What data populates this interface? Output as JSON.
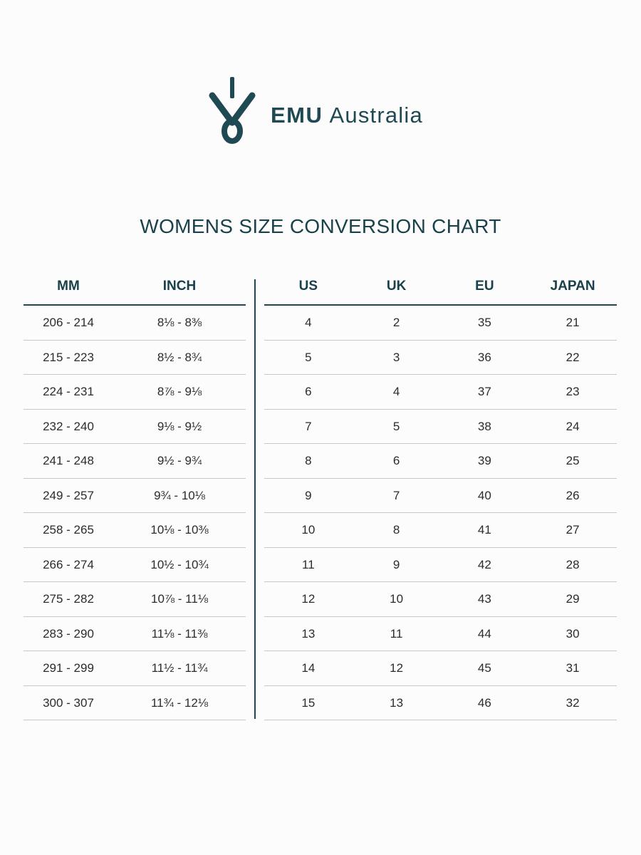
{
  "brand": {
    "name_bold": "EMU",
    "name_light": "Australia"
  },
  "title": "WOMENS SIZE CONVERSION CHART",
  "headers": {
    "mm": "MM",
    "inch": "INCH",
    "us": "US",
    "uk": "UK",
    "eu": "EU",
    "japan": "JAPAN"
  },
  "rows": [
    {
      "mm": "206  -  214",
      "inch": "8⅛  -  8⅜",
      "us": "4",
      "uk": "2",
      "eu": "35",
      "japan": "21"
    },
    {
      "mm": "215  -  223",
      "inch": "8½  -  8¾",
      "us": "5",
      "uk": "3",
      "eu": "36",
      "japan": "22"
    },
    {
      "mm": "224  -  231",
      "inch": "8⅞  -  9⅛",
      "us": "6",
      "uk": "4",
      "eu": "37",
      "japan": "23"
    },
    {
      "mm": "232  -  240",
      "inch": "9⅛  -  9½",
      "us": "7",
      "uk": "5",
      "eu": "38",
      "japan": "24"
    },
    {
      "mm": "241  -  248",
      "inch": "9½  -  9¾",
      "us": "8",
      "uk": "6",
      "eu": "39",
      "japan": "25"
    },
    {
      "mm": "249  -  257",
      "inch": "9¾  -  10⅛",
      "us": "9",
      "uk": "7",
      "eu": "40",
      "japan": "26"
    },
    {
      "mm": "258  -  265",
      "inch": "10⅛  -  10⅜",
      "us": "10",
      "uk": "8",
      "eu": "41",
      "japan": "27"
    },
    {
      "mm": "266  -  274",
      "inch": "10½  -  10¾",
      "us": "11",
      "uk": "9",
      "eu": "42",
      "japan": "28"
    },
    {
      "mm": "275  -  282",
      "inch": "10⅞  -  11⅛",
      "us": "12",
      "uk": "10",
      "eu": "43",
      "japan": "29"
    },
    {
      "mm": "283  -  290",
      "inch": "11⅛  -  11⅜",
      "us": "13",
      "uk": "11",
      "eu": "44",
      "japan": "30"
    },
    {
      "mm": "291  -  299",
      "inch": "11½  -  11¾",
      "us": "14",
      "uk": "12",
      "eu": "45",
      "japan": "31"
    },
    {
      "mm": "300  -  307",
      "inch": "11¾  -  12⅛",
      "us": "15",
      "uk": "13",
      "eu": "46",
      "japan": "32"
    }
  ],
  "colors": {
    "brand": "#1f4a53",
    "rule": "#1c4a54",
    "divider": "#c8c8c8"
  }
}
